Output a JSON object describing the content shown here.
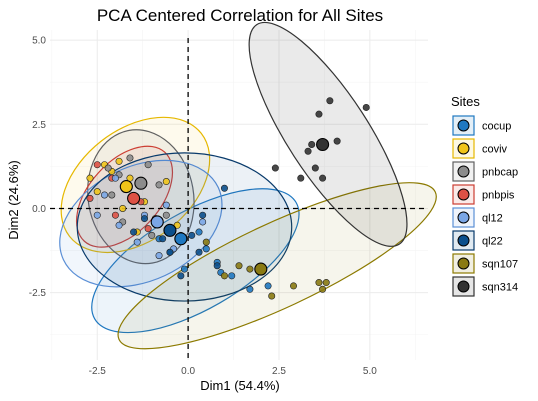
{
  "chart_data": {
    "type": "scatter",
    "title": "PCA Centered Correlation for All Sites",
    "xlabel": "Dim1 (54.4%)",
    "ylabel": "Dim2 (24.6%)",
    "xlim": [
      -3.8,
      6.6
    ],
    "ylim": [
      -4.5,
      5.3
    ],
    "x_ticks": [
      -2.5,
      0.0,
      2.5,
      5.0
    ],
    "x_tick_labels": [
      "-2.5",
      "0.0",
      "2.5",
      "5.0"
    ],
    "y_ticks": [
      -2.5,
      0.0,
      2.5,
      5.0
    ],
    "y_tick_labels": [
      "-2.5",
      "0.0",
      "2.5",
      "5.0"
    ],
    "grid": true,
    "reference_lines": {
      "x": 0,
      "y": 0,
      "style": "dashed"
    },
    "legend": {
      "title": "Sites",
      "position": "right"
    },
    "series": [
      {
        "name": "cocup",
        "color": "#1f78c1",
        "fill": "#1f78c1",
        "ellipse_fill_opacity": 0.08,
        "centroid": [
          -0.2,
          -0.9
        ],
        "ellipse": {
          "cx": 0.2,
          "cy": -1.55,
          "rx": 3.2,
          "ry": 1.45,
          "angle_deg": -30
        },
        "points": [
          [
            -0.8,
            -0.9
          ],
          [
            -0.5,
            -1.3
          ],
          [
            0.3,
            -0.7
          ],
          [
            0.8,
            -1.6
          ],
          [
            1.2,
            -2.0
          ],
          [
            1.7,
            -2.4
          ],
          [
            2.2,
            -2.3
          ],
          [
            0.9,
            -1.9
          ],
          [
            -0.1,
            -1.8
          ],
          [
            0.5,
            -1.2
          ]
        ]
      },
      {
        "name": "coviv",
        "color": "#e6b800",
        "fill": "#f0c419",
        "ellipse_fill_opacity": 0.08,
        "centroid": [
          -1.7,
          0.65
        ],
        "ellipse": {
          "cx": -1.45,
          "cy": 0.7,
          "rx": 2.3,
          "ry": 1.65,
          "angle_deg": -38
        },
        "points": [
          [
            -2.3,
            1.3
          ],
          [
            -2.1,
            1.1
          ],
          [
            -1.9,
            1.4
          ],
          [
            -1.6,
            0.9
          ],
          [
            -2.5,
            0.5
          ],
          [
            -1.2,
            0.2
          ],
          [
            -0.9,
            -0.3
          ],
          [
            -1.4,
            -0.7
          ],
          [
            -0.6,
            0.8
          ],
          [
            -2.7,
            0.9
          ],
          [
            -0.3,
            -0.5
          ],
          [
            -1.8,
            0.0
          ]
        ]
      },
      {
        "name": "pnbcap",
        "color": "#606060",
        "fill": "#8c8c8c",
        "ellipse_fill_opacity": 0.1,
        "centroid": [
          -1.3,
          0.75
        ],
        "ellipse": {
          "cx": -1.3,
          "cy": 0.35,
          "rx": 1.45,
          "ry": 2.0,
          "angle_deg": -10
        },
        "points": [
          [
            -1.6,
            1.5
          ],
          [
            -1.9,
            1.0
          ],
          [
            -1.1,
            1.3
          ],
          [
            -0.8,
            0.7
          ],
          [
            -1.5,
            0.3
          ],
          [
            -2.1,
            0.4
          ],
          [
            -0.6,
            -0.2
          ],
          [
            -1.0,
            -0.8
          ],
          [
            -1.8,
            -0.4
          ],
          [
            -2.2,
            1.2
          ]
        ]
      },
      {
        "name": "pnbpis",
        "color": "#cc3d32",
        "fill": "#dd5145",
        "ellipse_fill_opacity": 0.08,
        "centroid": [
          -1.5,
          0.3
        ],
        "ellipse": {
          "cx": -1.75,
          "cy": 0.35,
          "rx": 1.65,
          "ry": 1.05,
          "angle_deg": -48
        },
        "points": [
          [
            -2.5,
            1.3
          ],
          [
            -2.1,
            0.9
          ],
          [
            -1.7,
            0.6
          ],
          [
            -1.3,
            0.2
          ],
          [
            -0.9,
            -0.3
          ],
          [
            -2.7,
            0.3
          ],
          [
            -1.1,
            -0.6
          ],
          [
            -2.0,
            -0.2
          ]
        ]
      },
      {
        "name": "ql12",
        "color": "#5b8fd6",
        "fill": "#7aa6e6",
        "ellipse_fill_opacity": 0.1,
        "centroid": [
          -0.85,
          -0.4
        ],
        "ellipse": {
          "cx": -1.3,
          "cy": -0.45,
          "rx": 2.35,
          "ry": 1.7,
          "angle_deg": -25
        },
        "points": [
          [
            -2.3,
            0.4
          ],
          [
            -1.9,
            -0.5
          ],
          [
            -1.4,
            -1.0
          ],
          [
            -0.8,
            -1.4
          ],
          [
            -0.2,
            -0.8
          ],
          [
            -2.0,
            0.9
          ],
          [
            -0.6,
            0.1
          ],
          [
            0.4,
            -0.4
          ],
          [
            -1.2,
            -0.2
          ],
          [
            -2.5,
            -0.2
          ],
          [
            -0.4,
            -1.2
          ]
        ]
      },
      {
        "name": "ql22",
        "color": "#083a6b",
        "fill": "#0b4f8c",
        "ellipse_fill_opacity": 0.08,
        "centroid": [
          -0.5,
          -0.65
        ],
        "ellipse": {
          "cx": -0.1,
          "cy": -0.55,
          "rx": 2.95,
          "ry": 2.2,
          "angle_deg": 0
        },
        "points": [
          [
            0.1,
            -0.8
          ],
          [
            -0.7,
            -0.9
          ],
          [
            -1.2,
            -0.3
          ],
          [
            0.4,
            -0.2
          ],
          [
            1.0,
            0.6
          ],
          [
            0.8,
            -1.7
          ],
          [
            -0.2,
            -2.0
          ],
          [
            -0.5,
            -1.3
          ],
          [
            -1.5,
            -0.7
          ],
          [
            0.3,
            -1.3
          ]
        ]
      },
      {
        "name": "sqn107",
        "color": "#8c7a00",
        "fill": "#8a7a12",
        "ellipse_fill_opacity": 0.08,
        "centroid": [
          2.0,
          -1.8
        ],
        "ellipse": {
          "cx": 2.45,
          "cy": -1.7,
          "rx": 4.8,
          "ry": 1.25,
          "angle_deg": -25
        },
        "points": [
          [
            1.7,
            -1.8
          ],
          [
            2.3,
            -2.6
          ],
          [
            3.6,
            -2.2
          ],
          [
            3.8,
            -2.2
          ],
          [
            3.7,
            -2.4
          ],
          [
            2.9,
            -2.3
          ],
          [
            0.5,
            -1.0
          ],
          [
            1.0,
            -2.0
          ],
          [
            1.4,
            -1.7
          ]
        ]
      },
      {
        "name": "sqn314",
        "color": "#333333",
        "fill": "#333333",
        "ellipse_fill_opacity": 0.1,
        "centroid": [
          3.7,
          1.9
        ],
        "ellipse": {
          "cx": 3.85,
          "cy": 2.2,
          "rx": 3.6,
          "ry": 1.2,
          "angle_deg": 57
        },
        "points": [
          [
            3.9,
            3.2
          ],
          [
            4.9,
            3.0
          ],
          [
            3.6,
            2.8
          ],
          [
            4.1,
            2.0
          ],
          [
            3.4,
            1.9
          ],
          [
            2.4,
            1.2
          ],
          [
            3.5,
            1.2
          ],
          [
            3.1,
            0.9
          ],
          [
            3.7,
            0.9
          ],
          [
            3.3,
            1.7
          ]
        ]
      }
    ]
  }
}
